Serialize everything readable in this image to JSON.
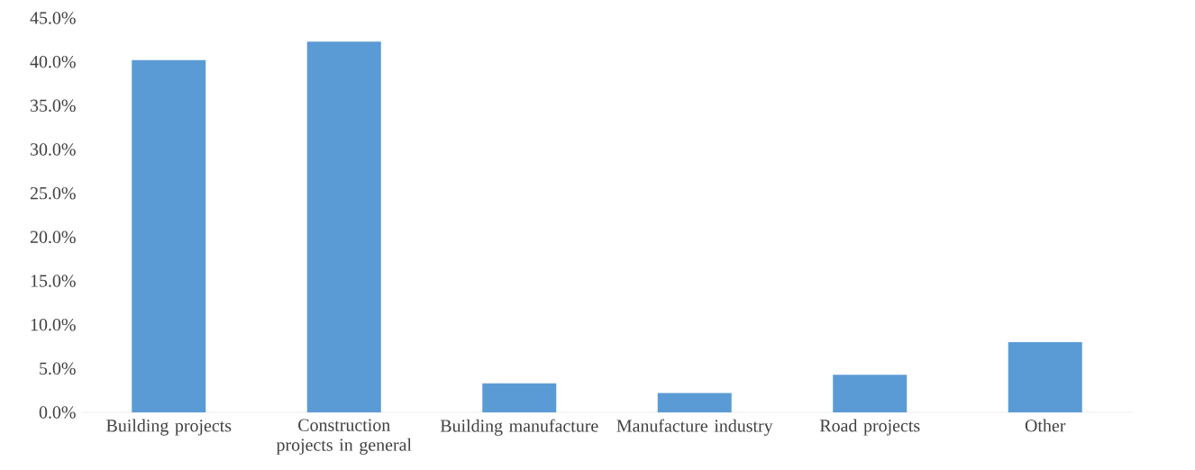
{
  "chart_data": {
    "type": "bar",
    "categories": [
      "Building projects",
      "Construction projects in general",
      "Building manufacture",
      "Manufacture industry",
      "Road projects",
      "Other"
    ],
    "values": [
      40.2,
      42.3,
      3.3,
      2.2,
      4.3,
      8.0
    ],
    "color": "#5b9bd5",
    "ylim": [
      0,
      45
    ],
    "yticks": [
      {
        "value": 0,
        "label": "0.0%"
      },
      {
        "value": 5,
        "label": "5.0%"
      },
      {
        "value": 10,
        "label": "10.0%"
      },
      {
        "value": 15,
        "label": "15.0%"
      },
      {
        "value": 20,
        "label": "20.0%"
      },
      {
        "value": 25,
        "label": "25.0%"
      },
      {
        "value": 30,
        "label": "30.0%"
      },
      {
        "value": 35,
        "label": "35.0%"
      },
      {
        "value": 40,
        "label": "40.0%"
      },
      {
        "value": 45,
        "label": "45.0%"
      }
    ],
    "grid": false
  }
}
